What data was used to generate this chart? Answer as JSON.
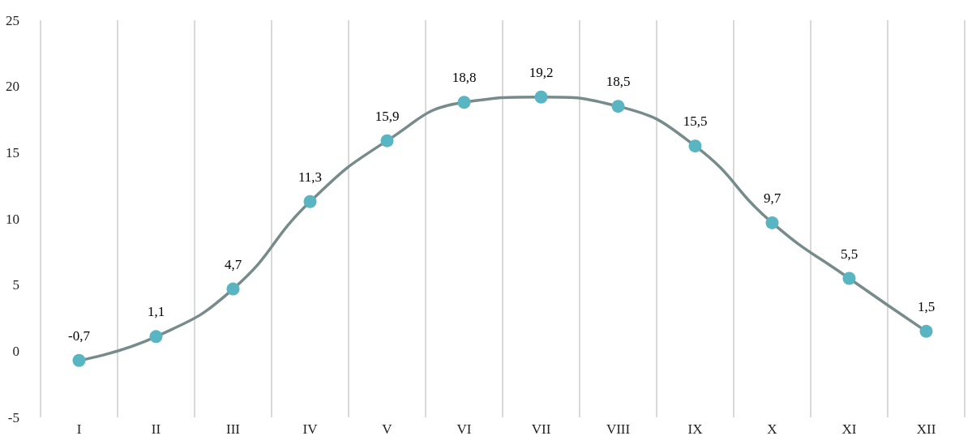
{
  "chart_data": {
    "type": "line",
    "categories": [
      "I",
      "II",
      "III",
      "IV",
      "V",
      "VI",
      "VII",
      "VIII",
      "IX",
      "X",
      "XI",
      "XII"
    ],
    "series": [
      {
        "color": "#778b8b",
        "colors": [
          "#5ab5c3",
          "#5ab5c3",
          "#5ab5c3",
          "#5ab5c3",
          "#5ab5c3",
          "#5ab5c3",
          "#5ab5c3",
          "#5ab5c3",
          "#5ab5c3",
          "#5ab5c3",
          "#5ab5c3",
          "#5ab5c3"
        ],
        "values": [
          -0.7,
          1.1,
          4.7,
          11.3,
          15.9,
          18.8,
          19.2,
          18.5,
          15.5,
          9.7,
          5.5,
          1.5
        ],
        "value_labels": [
          "-0,7",
          "1,1",
          "4,7",
          "11,3",
          "15,9",
          "18,8",
          "19,2",
          "18,5",
          "15,5",
          "9,7",
          "5,5",
          "1,5"
        ]
      }
    ],
    "ylim": [
      -5,
      25
    ],
    "yticks": [
      -5,
      0,
      5,
      10,
      15,
      20,
      25
    ],
    "grid": "x",
    "marker": "circle"
  }
}
